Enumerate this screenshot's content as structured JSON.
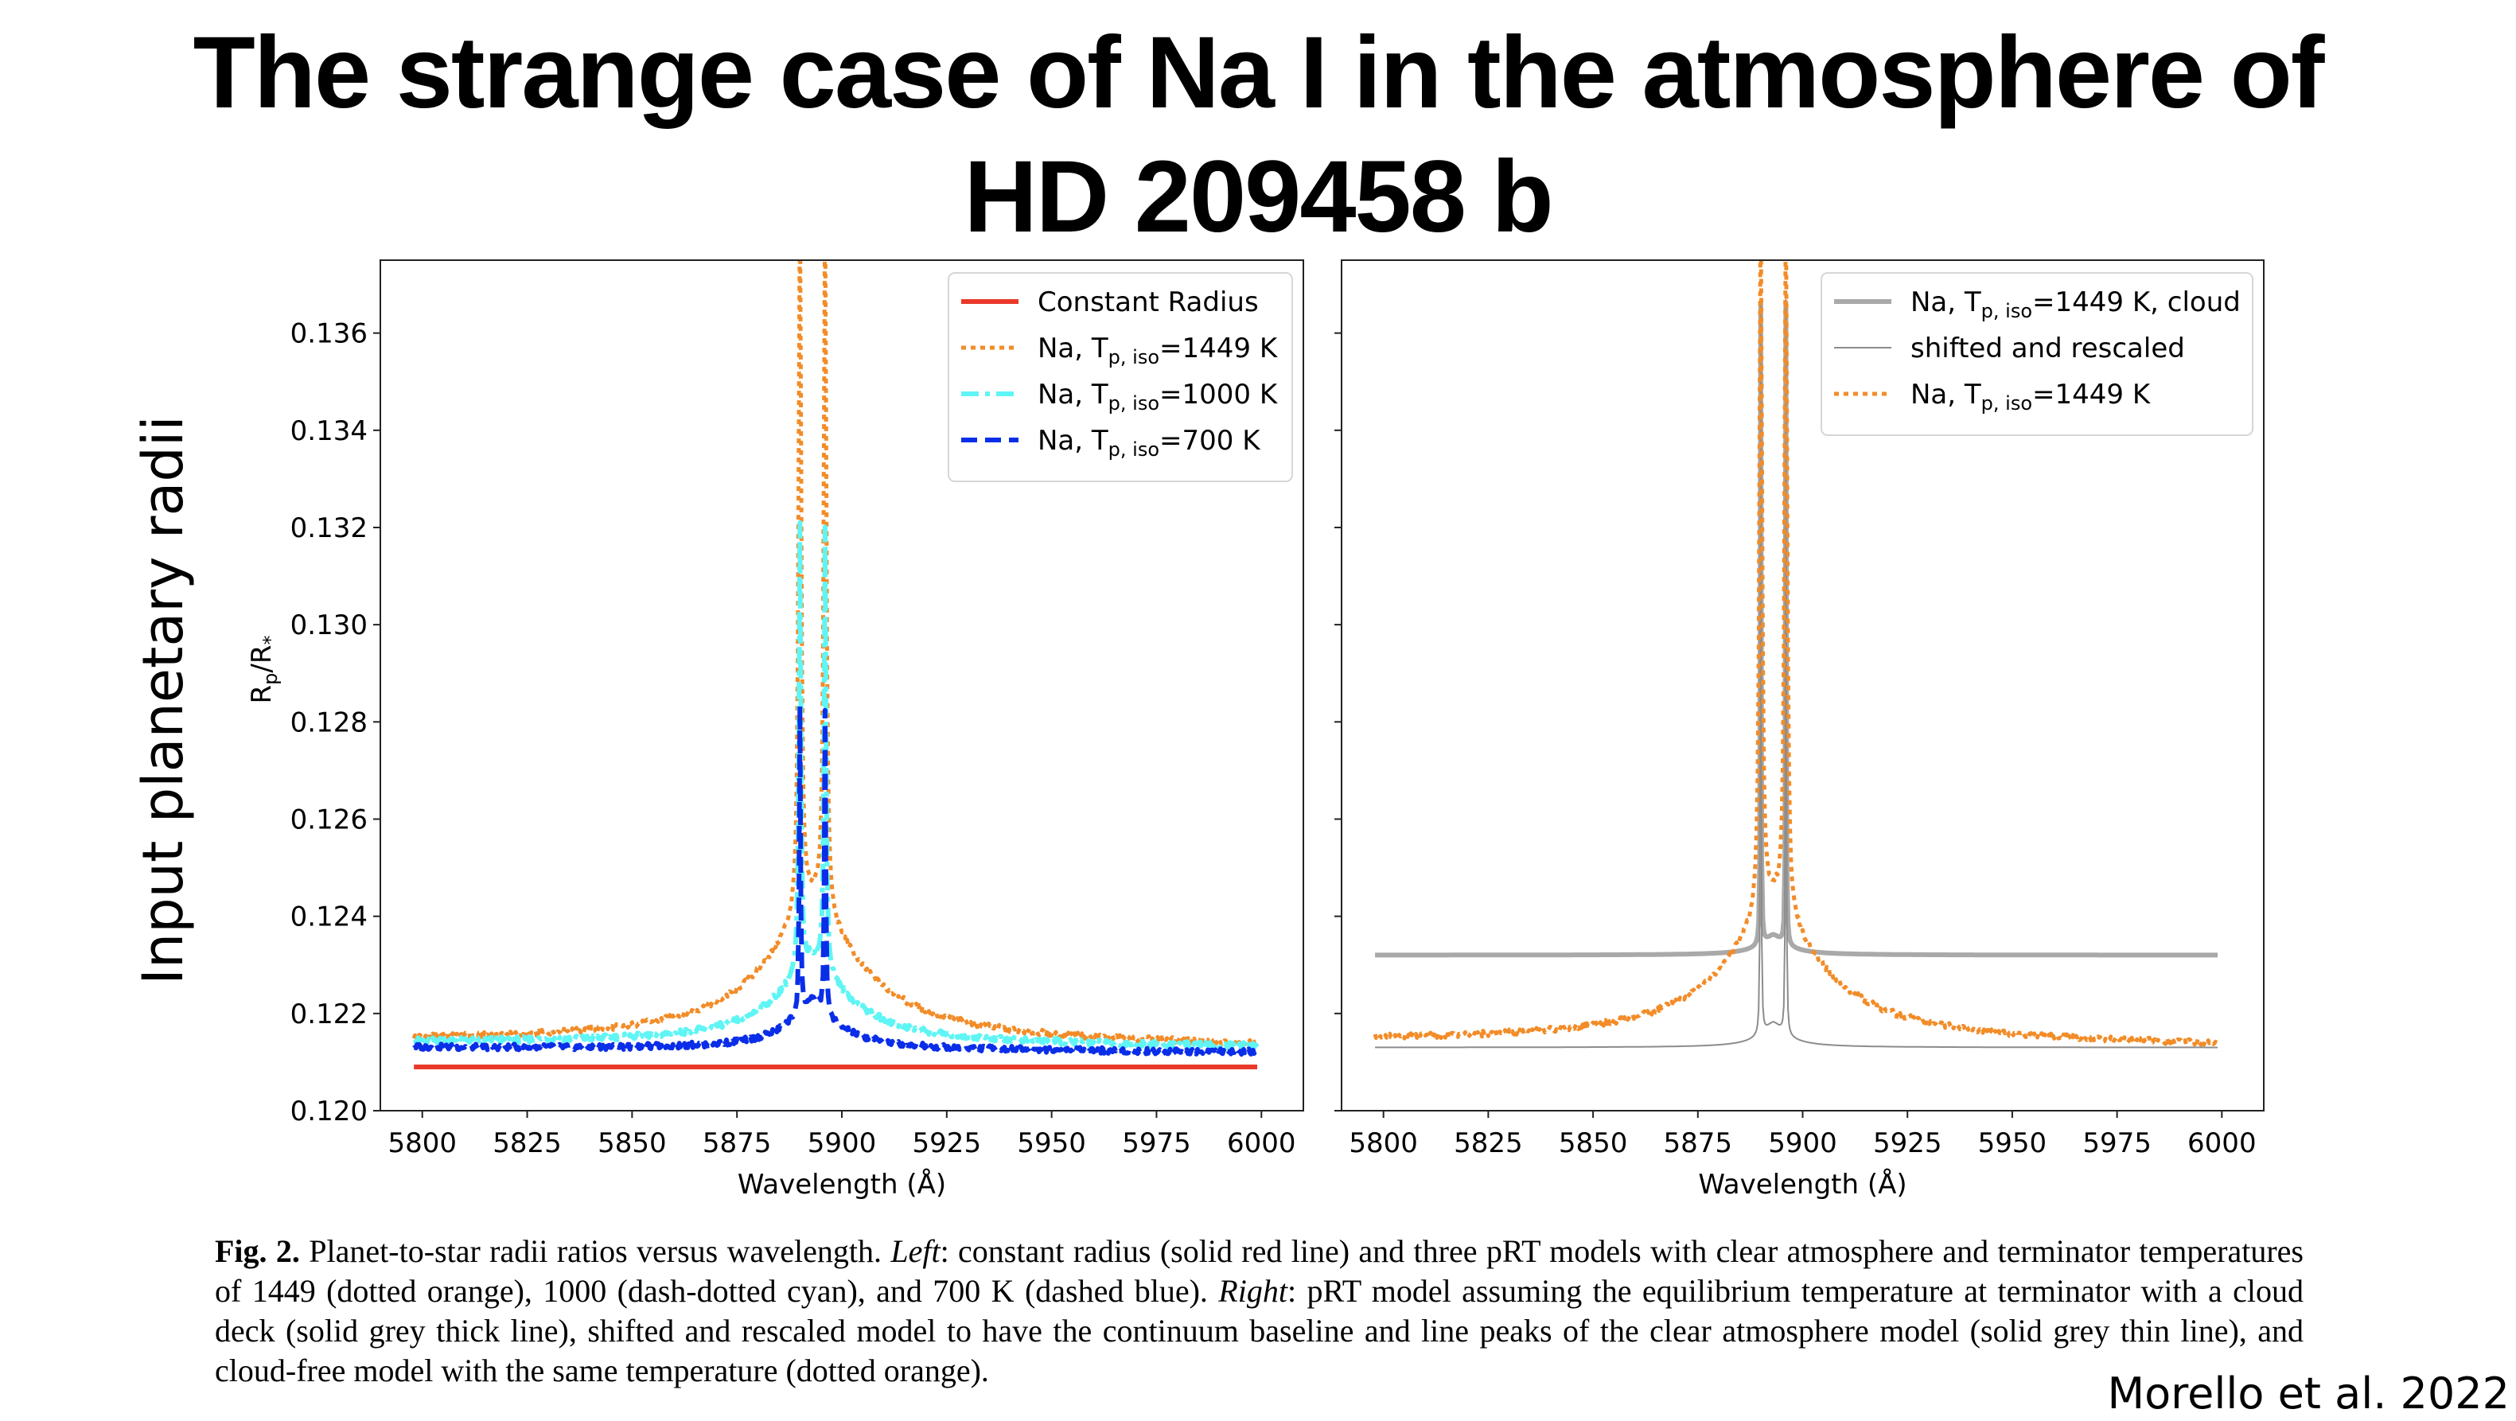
{
  "slide": {
    "title_line1": "The strange case of Na I in the atmosphere of",
    "title_line2": "HD 209458 b",
    "side_label": "Input planetary radii",
    "credit": "Morello et al. 2022"
  },
  "caption": {
    "fig_label": "Fig. 2.",
    "part1": " Planet-to-star radii ratios versus wavelength. ",
    "left_label": "Left",
    "part2": ": constant radius (solid red line) and three pRT models with clear atmosphere and terminator temperatures of 1449 (dotted orange), 1000 (dash-dotted cyan), and 700 K (dashed blue). ",
    "right_label": "Right",
    "part3": ": pRT model assuming the equilibrium temperature at terminator with a cloud deck (solid grey thick line), shifted and rescaled model to have the continuum baseline and line peaks of the clear atmosphere model (solid grey thin line), and cloud-free model with the same temperature (dotted orange)."
  },
  "chart_data": [
    {
      "type": "line",
      "panel": "left",
      "title": "",
      "xlabel": "Wavelength (Å)",
      "ylabel": "Rp/R*",
      "xlim": [
        5790,
        6010
      ],
      "ylim": [
        0.12,
        0.1375
      ],
      "xticks": [
        5800,
        5825,
        5850,
        5875,
        5900,
        5925,
        5950,
        5975,
        6000
      ],
      "yticks": [
        0.12,
        0.122,
        0.124,
        0.126,
        0.128,
        0.13,
        0.132,
        0.134,
        0.136
      ],
      "ytick_labels": [
        "0.120",
        "0.122",
        "0.124",
        "0.126",
        "0.128",
        "0.130",
        "0.132",
        "0.134",
        "0.136"
      ],
      "grid": false,
      "legend_position": "top-right",
      "line_centers": [
        5890,
        5896
      ],
      "series": [
        {
          "name": "Constant Radius",
          "label_main": "Constant Radius",
          "style": "solid",
          "color": "#e8392a",
          "baseline": 0.1209,
          "baseline_end": 0.1209,
          "peak": 0.1209,
          "wing_left": 0,
          "wing_right": 0,
          "width": 1.0
        },
        {
          "name": "Na, Tp,iso=1449 K",
          "label_main": "Na, T",
          "label_sub": "p, iso",
          "label_tail": "=1449 K",
          "style": "dotted",
          "color": "#f28c28",
          "baseline": 0.1214,
          "baseline_end": 0.1213,
          "peak": 0.1363,
          "dip": 0.1238,
          "wing_amp": 0.003,
          "width": 6.0
        },
        {
          "name": "Na, Tp,iso=1000 K",
          "label_main": "Na, T",
          "label_sub": "p, iso",
          "label_tail": "=1000 K",
          "style": "dashdot",
          "color": "#5ff5f5",
          "baseline": 0.1214,
          "baseline_end": 0.1213,
          "peak": 0.1305,
          "dip": 0.1231,
          "wing_amp": 0.0018,
          "width": 4.5
        },
        {
          "name": "Na, Tp,iso=700 K",
          "label_main": "Na, T",
          "label_sub": "p, iso",
          "label_tail": "=700 K",
          "style": "dashed",
          "color": "#0a2ee8",
          "baseline": 0.1213,
          "baseline_end": 0.1212,
          "peak": 0.1275,
          "dip": 0.1222,
          "wing_amp": 0.001,
          "width": 3.0
        }
      ]
    },
    {
      "type": "line",
      "panel": "right",
      "title": "",
      "xlabel": "Wavelength (Å)",
      "ylabel": "",
      "xlim": [
        5790,
        6010
      ],
      "ylim": [
        0.12,
        0.1375
      ],
      "xticks": [
        5800,
        5825,
        5850,
        5875,
        5900,
        5925,
        5950,
        5975,
        6000
      ],
      "yticks": [
        0.12,
        0.122,
        0.124,
        0.126,
        0.128,
        0.13,
        0.132,
        0.134,
        0.136
      ],
      "ytick_labels_shown": false,
      "grid": false,
      "legend_position": "top-right",
      "line_centers": [
        5890,
        5896
      ],
      "series": [
        {
          "name": "Na, Tp,iso=1449 K, cloud",
          "label_main": "Na, T",
          "label_sub": "p, iso",
          "label_tail": "=1449 K, cloud",
          "style": "solid-thick",
          "color": "#a9a9a9",
          "baseline": 0.1232,
          "baseline_end": 0.1232,
          "peak": 0.1364,
          "dip": 0.125,
          "wing_amp": 0.0004,
          "width": 1.6
        },
        {
          "name": "shifted and rescaled",
          "label_main": "shifted and rescaled",
          "style": "solid-thin",
          "color": "#8c8c8c",
          "baseline": 0.1213,
          "baseline_end": 0.1213,
          "peak": 0.1364,
          "dip": 0.123,
          "wing_amp": 0.0005,
          "width": 1.6
        },
        {
          "name": "Na, Tp,iso=1449 K",
          "label_main": "Na, T",
          "label_sub": "p, iso",
          "label_tail": "=1449 K",
          "style": "dotted",
          "color": "#f28c28",
          "baseline": 0.1214,
          "baseline_end": 0.1213,
          "peak": 0.1364,
          "dip": 0.1238,
          "wing_amp": 0.003,
          "width": 6.0
        }
      ]
    }
  ]
}
